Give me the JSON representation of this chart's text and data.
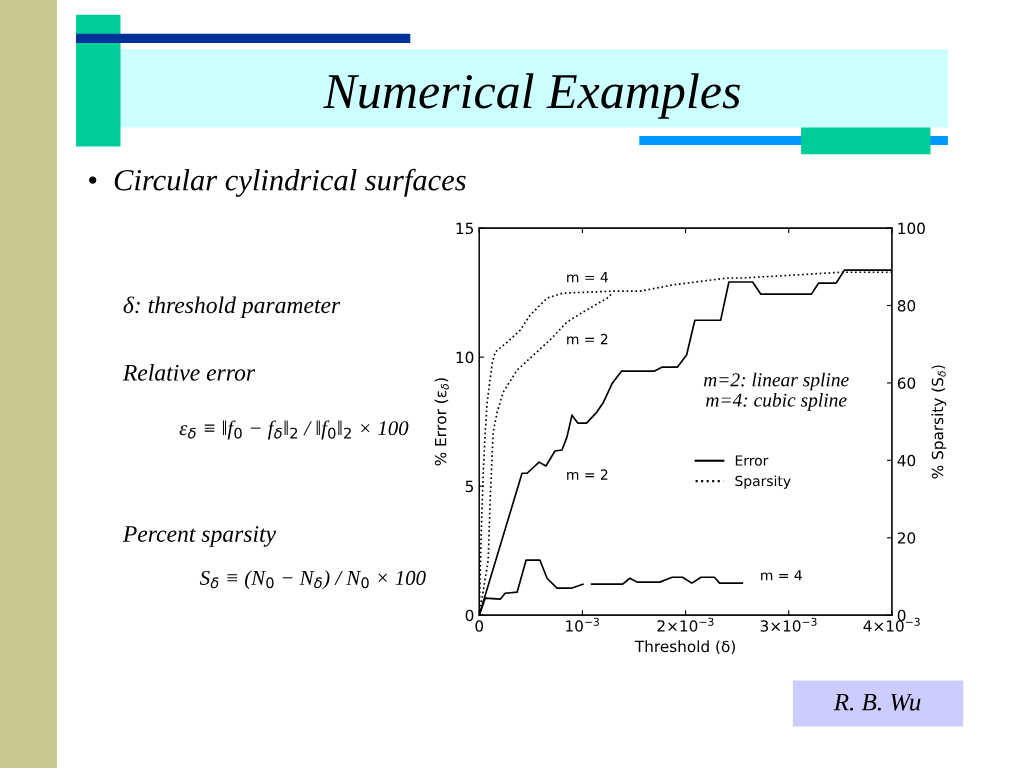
{
  "chart_data": {
    "type": "line",
    "title": "Numerical Examples",
    "subtitle": "•  Circular cylindrical surfaces",
    "xlabel": "Threshold (δ)",
    "ylabel": "% Error (ε$_{δ}$)",
    "y2label": "% Sparsity (S$_{δ}$)",
    "xlim": [
      0,
      0.004
    ],
    "xticks": [
      0,
      {
        "value": 0.001,
        "label": "10$^{−3}$"
      },
      {
        "value": 0.002,
        "label": "2×10$^{−3}$"
      },
      {
        "value": 0.003,
        "label": "3×10$^{−3}$"
      },
      {
        "value": 0.004,
        "label": "4×10$^{−3}$"
      }
    ],
    "ylim": [
      0,
      15
    ],
    "yticks": [
      0,
      5,
      10,
      15
    ],
    "y2lim": [
      0,
      100
    ],
    "y2ticks": [
      0,
      20,
      40,
      60,
      80,
      100
    ],
    "grid": false,
    "legend": "center",
    "series": [
      {
        "name": "Error",
        "color": "#000000",
        "line_style": "solid",
        "x": [
          0,
          0.000415,
          0.000464,
          0.00058,
          0.000647,
          0.000734,
          0.000802,
          0.00085,
          0.000899,
          0.000957,
          0.00104,
          0.00114,
          0.0012,
          0.00129,
          0.00138,
          0.0017,
          0.00177,
          0.00192,
          0.00201,
          0.00209,
          0.00234,
          0.00242,
          0.00265,
          0.00273,
          0.00322,
          0.00329,
          0.00346,
          0.00354,
          0.00399
        ],
        "values": [
          0,
          5.5,
          5.5,
          5.93,
          5.78,
          6.36,
          6.4,
          6.9,
          7.75,
          7.44,
          7.44,
          7.87,
          8.22,
          8.99,
          9.46,
          9.46,
          9.61,
          9.61,
          10.08,
          11.43,
          11.43,
          12.91,
          12.91,
          12.44,
          12.44,
          12.87,
          12.87,
          13.37,
          13.37
        ]
      },
      {
        "color": "#000000",
        "line_style": "solid",
        "x": [
          0,
          5.8e-05,
          0.000203,
          0.000251,
          0.000367,
          0.000454,
          0.000589,
          0.000657,
          0.000754,
          0.000899,
          0.001005,
          0.00105,
          0.00109,
          0.00139,
          0.00146,
          0.00153,
          0.00175,
          0.00187,
          0.00197,
          0.00206,
          0.00215,
          0.00228,
          0.00233,
          0.00255
        ],
        "values": [
          0,
          0.66,
          0.62,
          0.85,
          0.89,
          2.13,
          2.13,
          1.43,
          1.05,
          1.05,
          1.2,
          null,
          1.2,
          1.2,
          1.43,
          1.28,
          1.28,
          1.47,
          1.47,
          1.24,
          1.47,
          1.47,
          1.24,
          1.24
        ]
      },
      {
        "name": "Sparsity",
        "color": "#000000",
        "line_style": "dotted",
        "axis": "y2",
        "x": [
          0,
          8.7e-05,
          0.000106,
          0.000135,
          0.000174,
          0.000232,
          0.000367,
          0.000493,
          0.000686,
          0.00085,
          0.001005,
          0.00124,
          0.00129
        ],
        "values": [
          0,
          14.2,
          29.7,
          47.3,
          52.5,
          57.6,
          63.3,
          66.4,
          71.1,
          75.7,
          78.3,
          81.9,
          83.2
        ]
      },
      {
        "color": "#000000",
        "line_style": "dotted",
        "axis": "y2",
        "x": [
          0,
          2e-05,
          4e-05,
          5.8e-05,
          7.7e-05,
          0.000126,
          0.000155,
          0.00027,
          0.000396,
          0.000493,
          0.000657,
          0.000812,
          0.00129,
          0.00156,
          0.00187,
          0.0024,
          0.00255,
          0.00352,
          0.00399
        ],
        "values": [
          0,
          22,
          37.5,
          47.3,
          55,
          65.1,
          68,
          70.5,
          73.6,
          77.5,
          81.9,
          83.2,
          83.7,
          83.7,
          85.3,
          87.1,
          87.1,
          88.6,
          88.6
        ]
      }
    ],
    "annotations": [
      "m = 4",
      "m = 2",
      "m = 2",
      "m = 4",
      "m=2: linear spline\nm=4: cubic spline",
      "δ: threshold parameter",
      "Relative error",
      "ε$_{δ}$ ≡ ‖f$_{0}$ − f$_{δ}$‖$_{2}$ / ‖f$_{0}$‖$_{2}$ × 100",
      "Percent sparsity",
      "S$_{δ}$ ≡ (N$_{0}$ − N$_{δ}$) / N$_{0}$ × 100",
      "R. B. Wu"
    ]
  }
}
